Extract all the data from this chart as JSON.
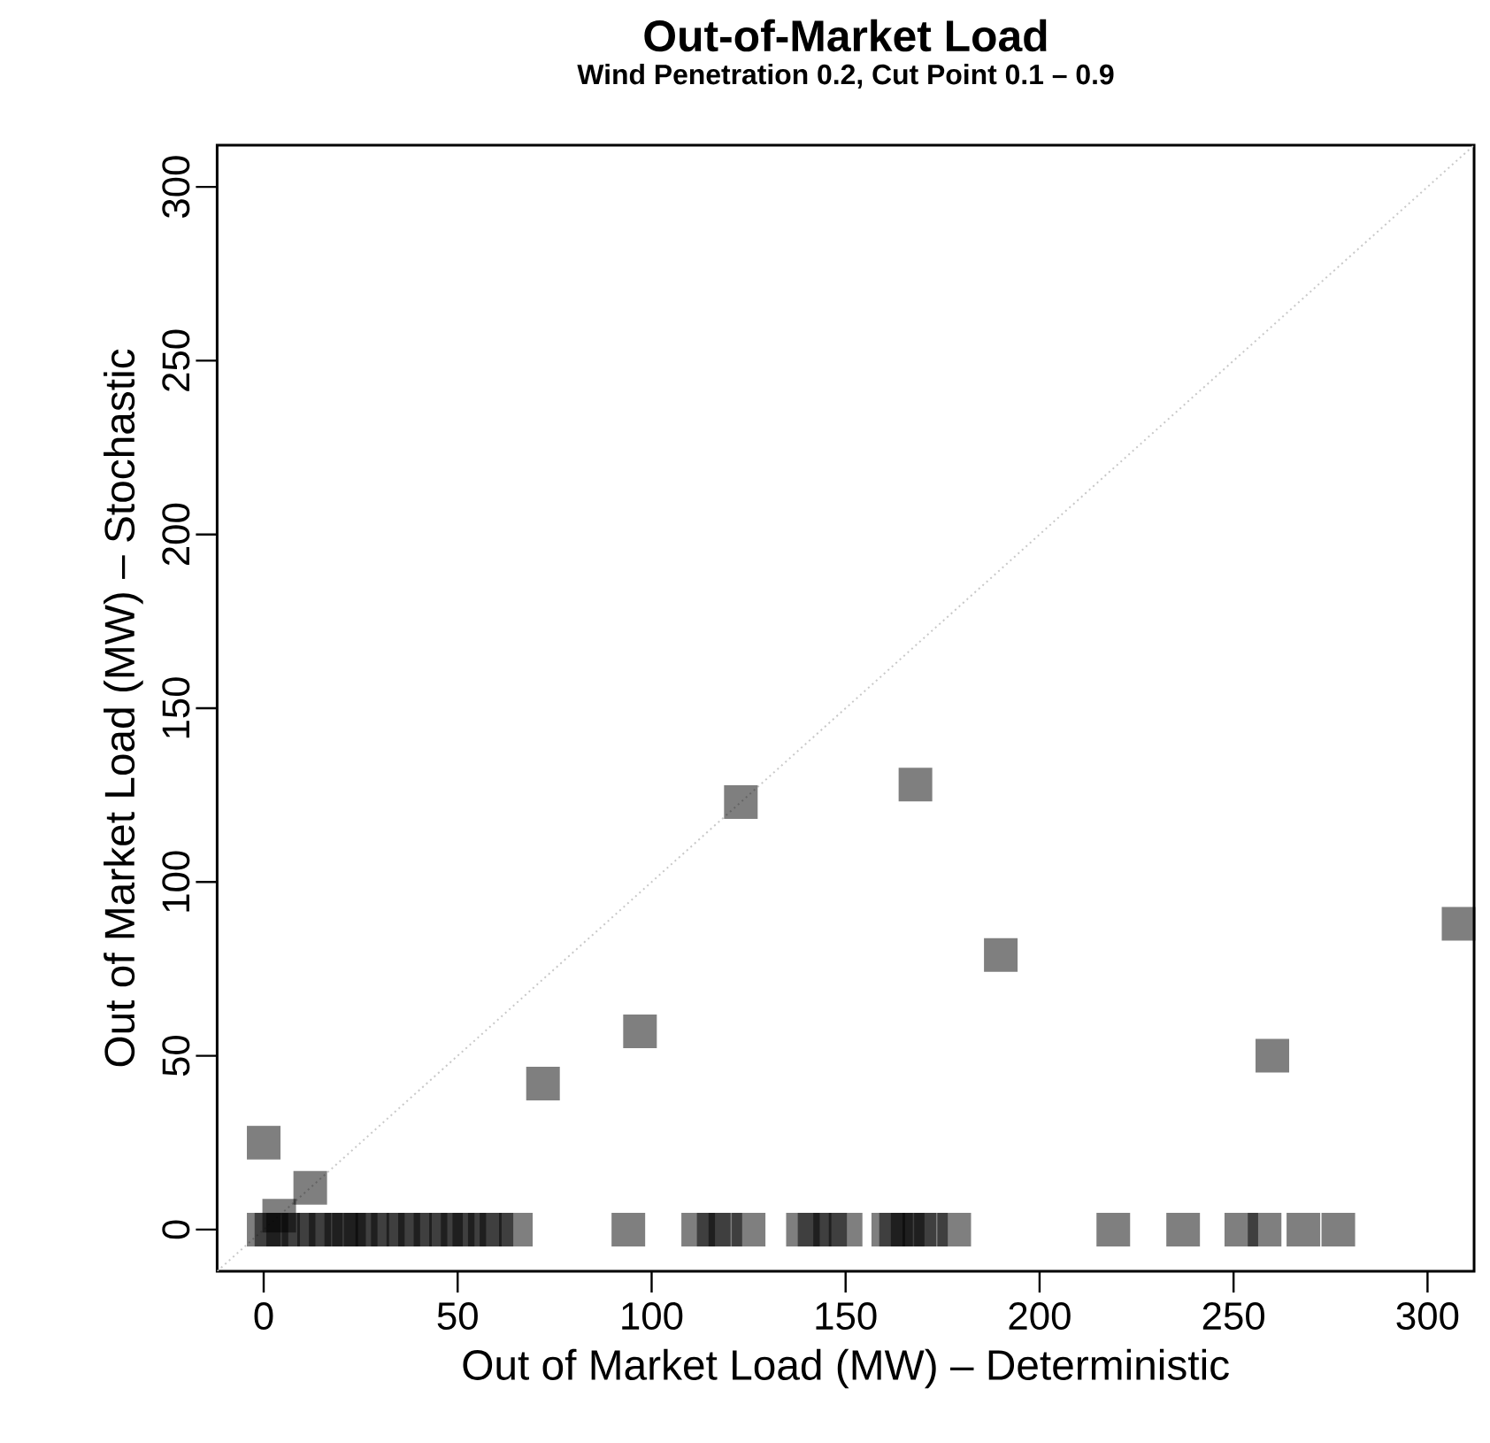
{
  "chart_data": {
    "type": "scatter",
    "title": "Out-of-Market Load",
    "subtitle": "Wind Penetration 0.2, Cut Point 0.1 – 0.9",
    "xlabel": "Out of Market Load (MW) – Deterministic",
    "ylabel": "Out of Market Load (MW) – Stochastic",
    "xlim": [
      -12,
      312
    ],
    "ylim": [
      -12,
      312
    ],
    "xticks": [
      0,
      50,
      100,
      150,
      200,
      250,
      300
    ],
    "yticks": [
      0,
      50,
      100,
      150,
      200,
      250,
      300
    ],
    "series": [
      {
        "type": "line",
        "color": "#c8c8c8",
        "line_style": "dotted",
        "x": [
          -12,
          312
        ],
        "values": [
          -12,
          312
        ]
      },
      {
        "marker": "square",
        "color": "#000000",
        "x": [
          0,
          12,
          123,
          97,
          72,
          168,
          190,
          260,
          308,
          0,
          2,
          5,
          9,
          13,
          16,
          20,
          22,
          25,
          28,
          32,
          36,
          39,
          43,
          47,
          50,
          53,
          57,
          60,
          65,
          94,
          112,
          116,
          119,
          125,
          139,
          142,
          146,
          150,
          161,
          163,
          166,
          169,
          172,
          178,
          219,
          237,
          252,
          258,
          268,
          277,
          4
        ],
        "values": [
          25,
          12,
          123,
          57,
          42,
          128,
          79,
          50,
          88,
          0,
          0,
          0,
          0,
          0,
          0,
          0,
          0,
          0,
          0,
          0,
          0,
          0,
          0,
          0,
          0,
          0,
          0,
          0,
          0,
          0,
          0,
          0,
          0,
          0,
          0,
          0,
          0,
          0,
          0,
          0,
          0,
          0,
          0,
          0,
          0,
          0,
          0,
          0,
          0,
          0,
          4
        ]
      }
    ]
  }
}
